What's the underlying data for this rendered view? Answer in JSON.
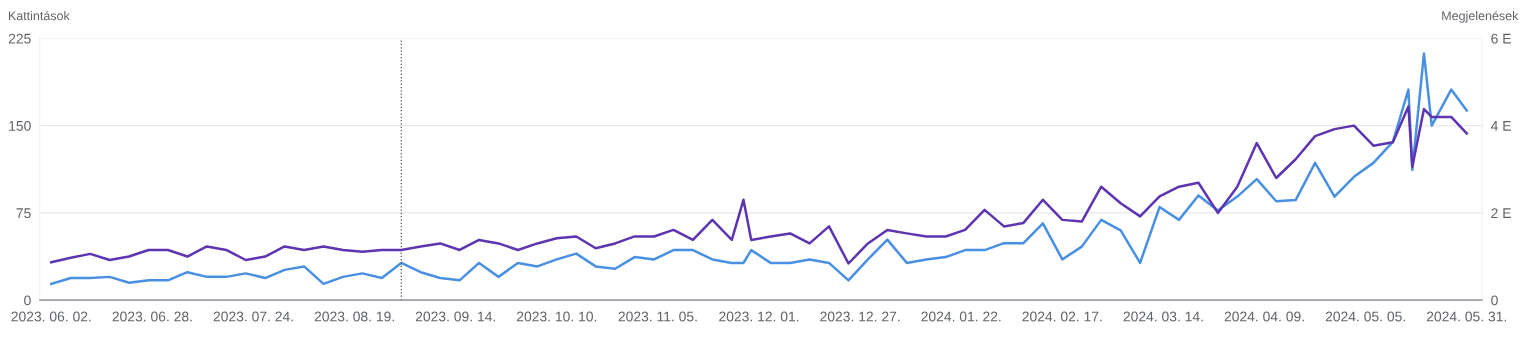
{
  "chart_data": {
    "type": "line",
    "ylabel": "Kattintások",
    "y2label": "Megjelenések",
    "xlim": [
      "2023-05-30",
      "2024-06-04"
    ],
    "xticks": [
      {
        "value": "2023-06-02",
        "label": "2023. 06. 02."
      },
      {
        "value": "2023-06-28",
        "label": "2023. 06. 28."
      },
      {
        "value": "2023-07-24",
        "label": "2023. 07. 24."
      },
      {
        "value": "2023-08-19",
        "label": "2023. 08. 19."
      },
      {
        "value": "2023-09-14",
        "label": "2023. 09. 14."
      },
      {
        "value": "2023-10-10",
        "label": "2023. 10. 10."
      },
      {
        "value": "2023-11-05",
        "label": "2023. 11. 05."
      },
      {
        "value": "2023-12-01",
        "label": "2023. 12. 01."
      },
      {
        "value": "2023-12-27",
        "label": "2023. 12. 27."
      },
      {
        "value": "2024-01-22",
        "label": "2024. 01. 22."
      },
      {
        "value": "2024-02-17",
        "label": "2024. 02. 17."
      },
      {
        "value": "2024-03-14",
        "label": "2024. 03. 14."
      },
      {
        "value": "2024-04-09",
        "label": "2024. 04. 09."
      },
      {
        "value": "2024-05-05",
        "label": "2024. 05. 05."
      },
      {
        "value": "2024-05-31",
        "label": "2024. 05. 31."
      }
    ],
    "ylim": [
      0,
      225
    ],
    "yticks": [
      0,
      75,
      150,
      225
    ],
    "y2lim": [
      0,
      6
    ],
    "y2ticks": [
      0,
      {
        "value": 2,
        "label": "2 E"
      },
      {
        "value": 4,
        "label": "4 E"
      },
      {
        "value": 6,
        "label": "6 E"
      }
    ],
    "grid": "y",
    "legend": false,
    "marker": "none",
    "line_style": "solid",
    "ref_lines": [
      {
        "axis": "x",
        "value": "2023-08-31",
        "color": "#555555",
        "line_style": "dotted"
      }
    ],
    "x": [
      "2023-06-02",
      "2023-06-07",
      "2023-06-12",
      "2023-06-17",
      "2023-06-22",
      "2023-06-27",
      "2023-07-02",
      "2023-07-07",
      "2023-07-12",
      "2023-07-17",
      "2023-07-22",
      "2023-07-27",
      "2023-08-01",
      "2023-08-06",
      "2023-08-11",
      "2023-08-16",
      "2023-08-21",
      "2023-08-26",
      "2023-08-31",
      "2023-09-05",
      "2023-09-10",
      "2023-09-15",
      "2023-09-20",
      "2023-09-25",
      "2023-09-30",
      "2023-10-05",
      "2023-10-10",
      "2023-10-15",
      "2023-10-20",
      "2023-10-25",
      "2023-10-30",
      "2023-11-04",
      "2023-11-09",
      "2023-11-14",
      "2023-11-19",
      "2023-11-24",
      "2023-11-27",
      "2023-11-29",
      "2023-12-04",
      "2023-12-09",
      "2023-12-14",
      "2023-12-19",
      "2023-12-24",
      "2023-12-29",
      "2024-01-03",
      "2024-01-08",
      "2024-01-13",
      "2024-01-18",
      "2024-01-23",
      "2024-01-28",
      "2024-02-02",
      "2024-02-07",
      "2024-02-12",
      "2024-02-17",
      "2024-02-22",
      "2024-02-27",
      "2024-03-03",
      "2024-03-08",
      "2024-03-13",
      "2024-03-18",
      "2024-03-23",
      "2024-03-28",
      "2024-04-02",
      "2024-04-07",
      "2024-04-12",
      "2024-04-17",
      "2024-04-22",
      "2024-04-27",
      "2024-05-02",
      "2024-05-07",
      "2024-05-12",
      "2024-05-16",
      "2024-05-17",
      "2024-05-20",
      "2024-05-22",
      "2024-05-27",
      "2024-05-31"
    ],
    "series": [
      {
        "color": "#4a90e2",
        "values": [
          14,
          19,
          19,
          20,
          15,
          17,
          17,
          24,
          20,
          20,
          23,
          19,
          26,
          29,
          14,
          20,
          23,
          19,
          32,
          24,
          19,
          17,
          32,
          20,
          32,
          29,
          35,
          40,
          29,
          27,
          37,
          35,
          43,
          43,
          35,
          32,
          32,
          43,
          32,
          32,
          35,
          32,
          17,
          35,
          52,
          32,
          35,
          37,
          43,
          43,
          49,
          49,
          66,
          35,
          46,
          69,
          60,
          32,
          80,
          69,
          90,
          77,
          89,
          104,
          85,
          86,
          118,
          89,
          106,
          118,
          136,
          181,
          112,
          212,
          150,
          181,
          163
        ]
      },
      {
        "color": "#5e35b1",
        "axis": "y2",
        "values": [
          0.87,
          0.97,
          1.06,
          0.92,
          1.0,
          1.15,
          1.15,
          1.0,
          1.23,
          1.15,
          0.92,
          1.0,
          1.23,
          1.15,
          1.23,
          1.15,
          1.11,
          1.15,
          1.15,
          1.23,
          1.3,
          1.15,
          1.38,
          1.3,
          1.15,
          1.3,
          1.42,
          1.46,
          1.19,
          1.3,
          1.46,
          1.46,
          1.61,
          1.38,
          1.84,
          1.38,
          2.3,
          1.38,
          1.46,
          1.53,
          1.3,
          1.69,
          0.84,
          1.3,
          1.61,
          1.53,
          1.46,
          1.46,
          1.61,
          2.07,
          1.69,
          1.77,
          2.3,
          1.84,
          1.8,
          2.6,
          2.22,
          1.92,
          2.38,
          2.6,
          2.69,
          2.0,
          2.6,
          3.6,
          2.8,
          3.23,
          3.76,
          3.92,
          4.0,
          3.54,
          3.62,
          4.44,
          3.06,
          4.38,
          4.2,
          4.2,
          3.82
        ]
      }
    ]
  }
}
